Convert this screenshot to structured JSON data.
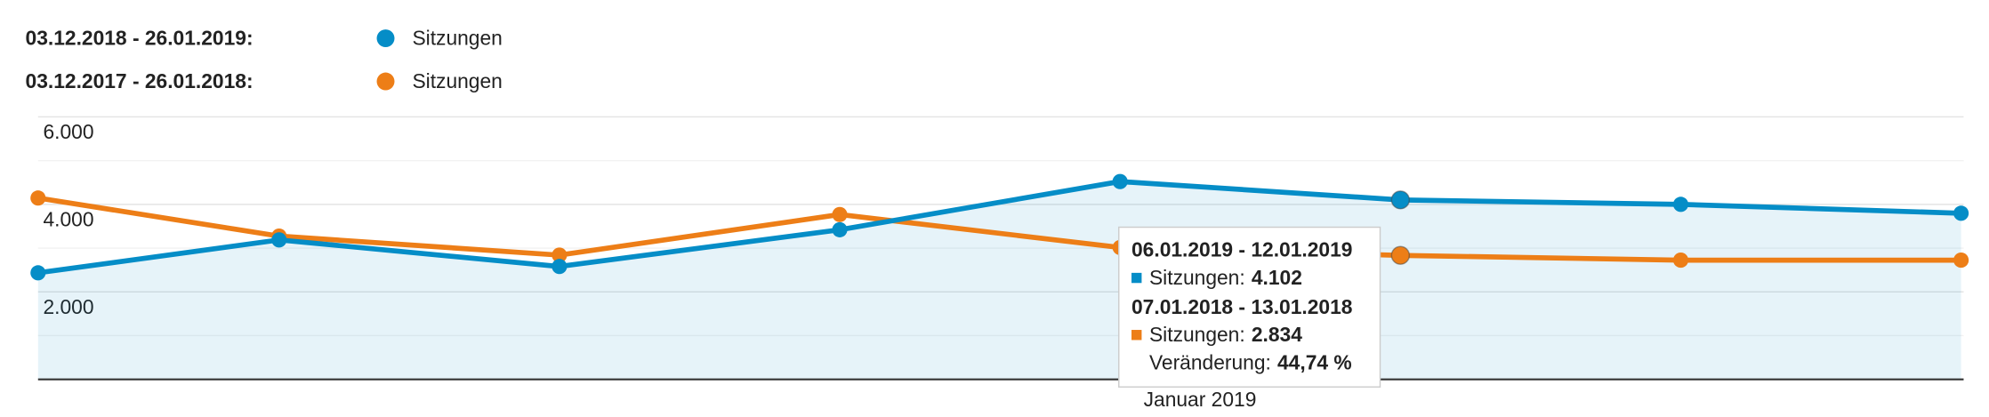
{
  "chart_data": {
    "type": "line",
    "categories": [
      null,
      null,
      null,
      null,
      null,
      null,
      null,
      null
    ],
    "x_axis_label": "Januar 2019",
    "series": [
      {
        "period": "03.12.2018 - 26.01.2019:",
        "name": "Sitzungen",
        "color": "#058dc7",
        "area": true,
        "values": [
          2435,
          3188,
          2580,
          3420,
          4522,
          4102,
          4000,
          3797
        ]
      },
      {
        "period": "03.12.2017 - 26.01.2018:",
        "name": "Sitzungen",
        "color": "#ed7e17",
        "values": [
          4145,
          3275,
          2840,
          3768,
          3014,
          2834,
          2725,
          2725
        ]
      }
    ],
    "ylim": [
      0,
      6000
    ],
    "yticks": [
      {
        "value": 2000,
        "label": "2.000"
      },
      {
        "value": 4000,
        "label": "4.000"
      },
      {
        "value": 6000,
        "label": "6.000"
      }
    ],
    "minor_yticks": [
      1000,
      3000,
      5000
    ],
    "grid": true,
    "tooltip": {
      "range1": "06.01.2019 - 12.01.2019",
      "label1": "Sitzungen:",
      "value1": "4.102",
      "range2": "07.01.2018 - 13.01.2018",
      "label2": "Sitzungen:",
      "value2": "2.834",
      "change_label": "Veränderung:",
      "change_value": "44,74 %"
    }
  }
}
